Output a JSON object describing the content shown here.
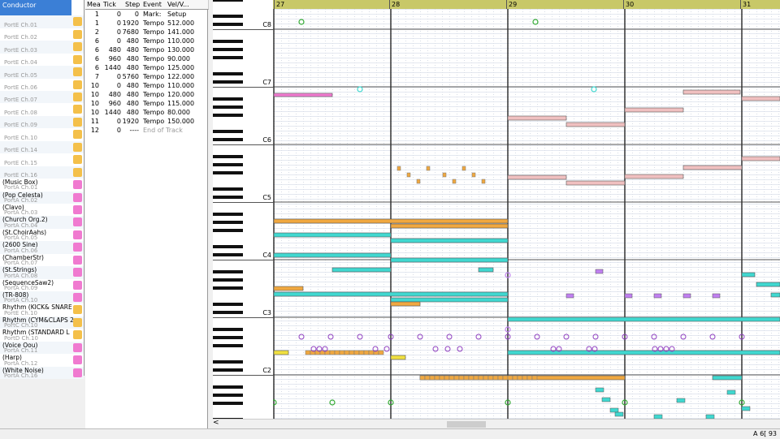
{
  "tracks": [
    {
      "name": "Conductor",
      "port": "",
      "color": "#3b7fd6"
    },
    {
      "name": "",
      "port": "PortE Ch.01",
      "color": "#f4c04a"
    },
    {
      "name": "",
      "port": "PortE Ch.02",
      "color": "#f4c04a"
    },
    {
      "name": "",
      "port": "PortE Ch.03",
      "color": "#f4c04a"
    },
    {
      "name": "",
      "port": "PortE Ch.04",
      "color": "#f4c04a"
    },
    {
      "name": "",
      "port": "PortE Ch.05",
      "color": "#f4c04a"
    },
    {
      "name": "",
      "port": "PortE Ch.06",
      "color": "#f4c04a"
    },
    {
      "name": "",
      "port": "PortE Ch.07",
      "color": "#f4c04a"
    },
    {
      "name": "",
      "port": "PortE Ch.08",
      "color": "#f4c04a"
    },
    {
      "name": "",
      "port": "PortE Ch.09",
      "color": "#f4c04a"
    },
    {
      "name": "",
      "port": "PortE Ch.10",
      "color": "#f4c04a"
    },
    {
      "name": "",
      "port": "PortE Ch.14",
      "color": "#f4c04a"
    },
    {
      "name": "",
      "port": "PortE Ch.15",
      "color": "#f4c04a"
    },
    {
      "name": "",
      "port": "PortE Ch.16",
      "color": "#f4c04a"
    },
    {
      "name": "(Music Box)",
      "port": "PortA Ch.01",
      "color": "#f07ad0"
    },
    {
      "name": "(Pop Celesta)",
      "port": "PortA Ch.02",
      "color": "#f07ad0"
    },
    {
      "name": "(Clavo)",
      "port": "PortA Ch.03",
      "color": "#f07ad0"
    },
    {
      "name": "(Church Org.2)",
      "port": "PortA Ch.04",
      "color": "#f07ad0"
    },
    {
      "name": "(St.ChoirAahs)",
      "port": "PortA Ch.05",
      "color": "#f07ad0"
    },
    {
      "name": "(2600 Sine)",
      "port": "PortA Ch.06",
      "color": "#f07ad0"
    },
    {
      "name": "(ChamberStr)",
      "port": "PortA Ch.07",
      "color": "#f07ad0"
    },
    {
      "name": "(St.Strings)",
      "port": "PortA Ch.08",
      "color": "#f07ad0"
    },
    {
      "name": "(SequenceSaw2)",
      "port": "PortA Ch.09",
      "color": "#f07ad0"
    },
    {
      "name": "(TR-808)",
      "port": "PortA Ch.10",
      "color": "#f07ad0"
    },
    {
      "name": "Rhythm (KICK& SNARE",
      "port": "PortE Ch.10",
      "color": "#f4c04a"
    },
    {
      "name": "Rhythm (CYM&CLAPS 2",
      "port": "PortC Ch.10",
      "color": "#f4c04a"
    },
    {
      "name": "Rhythm (STANDARD L",
      "port": "PortD Ch.10",
      "color": "#f4c04a"
    },
    {
      "name": "(Voice Oou)",
      "port": "PortA Ch.11",
      "color": "#f07ad0"
    },
    {
      "name": "(Harp)",
      "port": "PortA Ch.12",
      "color": "#f07ad0"
    },
    {
      "name": "(White Noise)",
      "port": "PortA Ch.16",
      "color": "#f07ad0"
    }
  ],
  "event_list": {
    "headers": [
      "Mea",
      "Tick",
      "Step",
      "Event",
      "Vel/V..."
    ],
    "rows": [
      [
        "1",
        "0",
        "0",
        "Mark:",
        "Setup"
      ],
      [
        "1",
        "0",
        "1920",
        "Tempo",
        "512.000"
      ],
      [
        "2",
        "0",
        "7680",
        "Tempo",
        "141.000"
      ],
      [
        "6",
        "0",
        "480",
        "Tempo",
        "110.000"
      ],
      [
        "6",
        "480",
        "480",
        "Tempo",
        "130.000"
      ],
      [
        "6",
        "960",
        "480",
        "Tempo",
        "90.000"
      ],
      [
        "6",
        "1440",
        "480",
        "Tempo",
        "125.000"
      ],
      [
        "7",
        "0",
        "5760",
        "Tempo",
        "122.000"
      ],
      [
        "10",
        "0",
        "480",
        "Tempo",
        "110.000"
      ],
      [
        "10",
        "480",
        "480",
        "Tempo",
        "120.000"
      ],
      [
        "10",
        "960",
        "480",
        "Tempo",
        "115.000"
      ],
      [
        "10",
        "1440",
        "480",
        "Tempo",
        "80.000"
      ],
      [
        "11",
        "0",
        "1920",
        "Tempo",
        "150.000"
      ],
      [
        "12",
        "0",
        "----",
        "End of Track",
        ""
      ]
    ]
  },
  "ruler": {
    "measures": [
      "27",
      "28",
      "29",
      "30",
      "31"
    ]
  },
  "piano": {
    "octave_labels": [
      "C8",
      "C7",
      "C6",
      "C5",
      "C4",
      "C3",
      "C2"
    ]
  },
  "status": {
    "text": "A 6[ 93"
  },
  "colors": {
    "ruler": "#c8c868",
    "pink": "#f07ad0",
    "orange": "#f0a840",
    "cyan": "#40d8d0",
    "purple": "#c080f0",
    "green": "#90e050",
    "salmon": "#f0c0c0"
  }
}
